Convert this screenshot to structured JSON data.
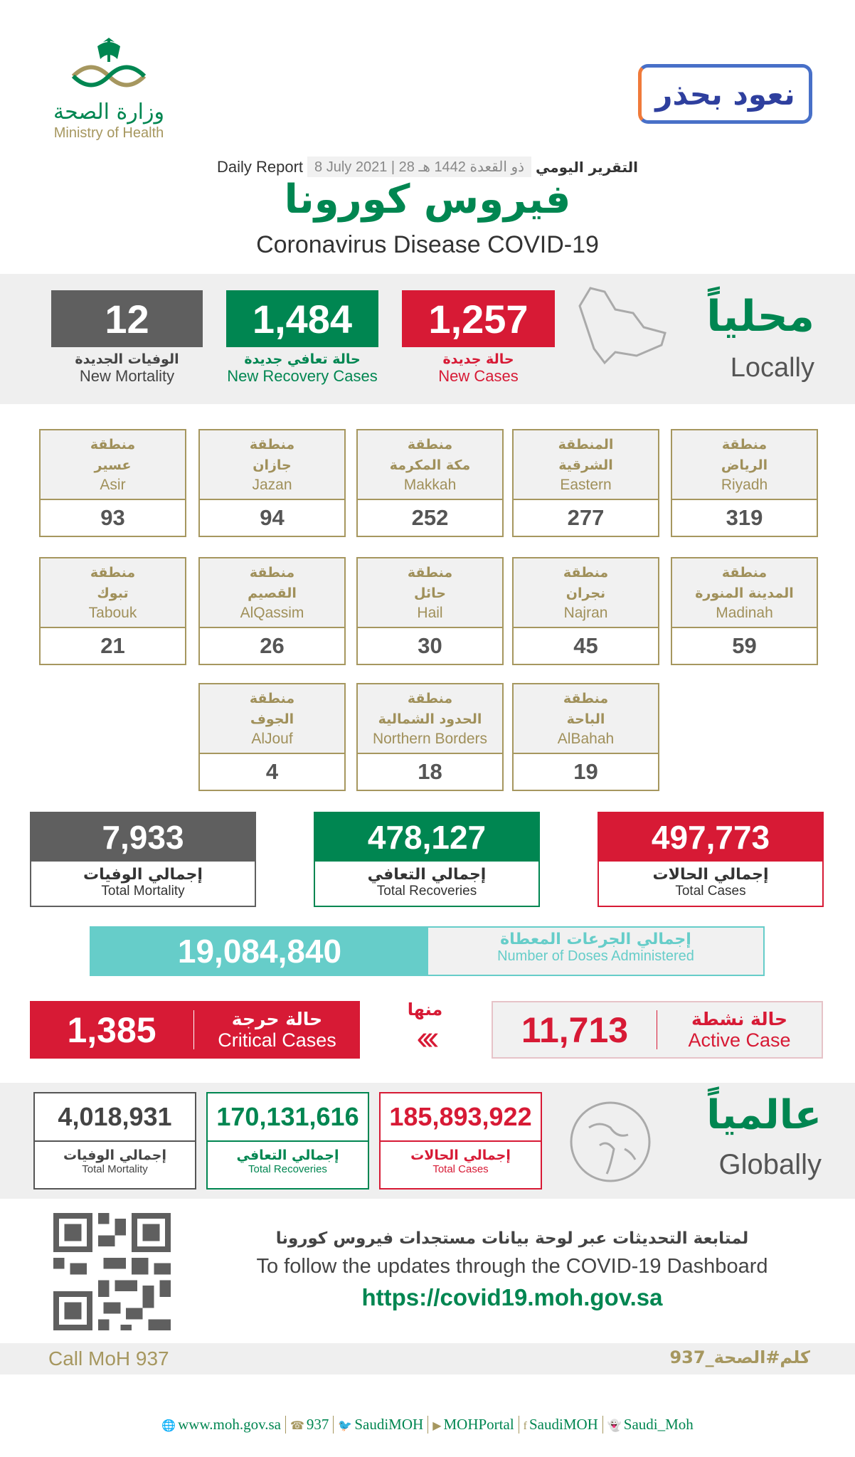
{
  "header": {
    "ministry_ar": "وزارة الصحة",
    "ministry_en": "Ministry of Health",
    "campaign": "نعود بحذر",
    "daily_report_en": "Daily Report",
    "date_en": "8 July 2021",
    "date_hijri": "28 ذو القعدة 1442 هـ",
    "daily_report_ar": "التقرير اليومي",
    "title_ar": "فيروس كورونا",
    "title_en": "Coronavirus Disease COVID-19"
  },
  "locally": {
    "label_ar": "محلياً",
    "label_en": "Locally",
    "new_cases": {
      "value": "1,257",
      "ar": "حالة جديدة",
      "en": "New Cases"
    },
    "new_recovery": {
      "value": "1,484",
      "ar": "حالة تعافي جديدة",
      "en": "New Recovery Cases"
    },
    "new_mortality": {
      "value": "12",
      "ar": "الوفيات الجديدة",
      "en": "New Mortality"
    }
  },
  "regions": [
    {
      "ar1": "منطقة",
      "ar2": "الرياض",
      "en": "Riyadh",
      "value": "319"
    },
    {
      "ar1": "المنطقة",
      "ar2": "الشرقية",
      "en": "Eastern",
      "value": "277"
    },
    {
      "ar1": "منطقة",
      "ar2": "مكة المكرمة",
      "en": "Makkah",
      "value": "252"
    },
    {
      "ar1": "منطقة",
      "ar2": "جازان",
      "en": "Jazan",
      "value": "94"
    },
    {
      "ar1": "منطقة",
      "ar2": "عسير",
      "en": "Asir",
      "value": "93"
    },
    {
      "ar1": "منطقة",
      "ar2": "المدينة المنورة",
      "en": "Madinah",
      "value": "59"
    },
    {
      "ar1": "منطقة",
      "ar2": "نجران",
      "en": "Najran",
      "value": "45"
    },
    {
      "ar1": "منطقة",
      "ar2": "حائل",
      "en": "Hail",
      "value": "30"
    },
    {
      "ar1": "منطقة",
      "ar2": "القصيم",
      "en": "AlQassim",
      "value": "26"
    },
    {
      "ar1": "منطقة",
      "ar2": "تبوك",
      "en": "Tabouk",
      "value": "21"
    },
    {
      "ar1": "منطقة",
      "ar2": "الباحة",
      "en": "AlBahah",
      "value": "19"
    },
    {
      "ar1": "منطقة",
      "ar2": "الحدود الشمالية",
      "en": "Northern Borders",
      "value": "18"
    },
    {
      "ar1": "منطقة",
      "ar2": "الجوف",
      "en": "AlJouf",
      "value": "4"
    }
  ],
  "totals": {
    "cases": {
      "value": "497,773",
      "ar": "إجمالي الحالات",
      "en": "Total Cases"
    },
    "recoveries": {
      "value": "478,127",
      "ar": "إجمالي التعافي",
      "en": "Total Recoveries"
    },
    "mortality": {
      "value": "7,933",
      "ar": "إجمالي الوفيات",
      "en": "Total Mortality"
    }
  },
  "doses": {
    "value": "19,084,840",
    "ar": "إجمالي الجرعات المعطاة",
    "en": "Number of Doses Administered"
  },
  "active": {
    "value": "11,713",
    "ar": "حالة نشطة",
    "en": "Active Case"
  },
  "of_which": "منها",
  "critical": {
    "value": "1,385",
    "ar": "حالة حرجة",
    "en": "Critical Cases"
  },
  "globally": {
    "label_ar": "عالمياً",
    "label_en": "Globally",
    "cases": {
      "value": "185,893,922",
      "ar": "إجمالي الحالات",
      "en": "Total Cases"
    },
    "recoveries": {
      "value": "170,131,616",
      "ar": "إجمالي التعافي",
      "en": "Total Recoveries"
    },
    "mortality": {
      "value": "4,018,931",
      "ar": "إجمالي الوفيات",
      "en": "Total Mortality"
    }
  },
  "dashboard": {
    "ar": "لمتابعة التحديثات عبر لوحة بيانات مستجدات فيروس كورونا",
    "en": "To follow the updates through the COVID-19 Dashboard",
    "url": "https://covid19.moh.gov.sa"
  },
  "call": {
    "en": "Call MoH 937",
    "ar": "كلم#الصحة_937"
  },
  "footer": [
    {
      "icon": "globe-icon",
      "label": "www.moh.gov.sa"
    },
    {
      "icon": "phone-icon",
      "label": "937"
    },
    {
      "icon": "twitter-icon",
      "label": "SaudiMOH"
    },
    {
      "icon": "youtube-icon",
      "label": "MOHPortal"
    },
    {
      "icon": "facebook-icon",
      "label": "SaudiMOH"
    },
    {
      "icon": "snapchat-icon",
      "label": "Saudi_Moh"
    }
  ],
  "colors": {
    "red": "#d71a35",
    "green": "#008651",
    "grey": "#5f5f5f",
    "gold": "#a6975f",
    "teal": "#66cdc9"
  }
}
